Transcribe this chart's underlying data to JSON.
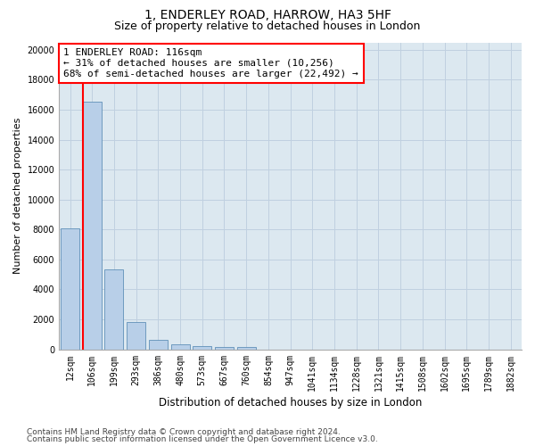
{
  "title1": "1, ENDERLEY ROAD, HARROW, HA3 5HF",
  "title2": "Size of property relative to detached houses in London",
  "xlabel": "Distribution of detached houses by size in London",
  "ylabel": "Number of detached properties",
  "bar_labels": [
    "12sqm",
    "106sqm",
    "199sqm",
    "293sqm",
    "386sqm",
    "480sqm",
    "573sqm",
    "667sqm",
    "760sqm",
    "854sqm",
    "947sqm",
    "1041sqm",
    "1134sqm",
    "1228sqm",
    "1321sqm",
    "1415sqm",
    "1508sqm",
    "1602sqm",
    "1695sqm",
    "1789sqm",
    "1882sqm"
  ],
  "bar_values": [
    8050,
    16550,
    5350,
    1850,
    650,
    320,
    210,
    175,
    130,
    0,
    0,
    0,
    0,
    0,
    0,
    0,
    0,
    0,
    0,
    0,
    0
  ],
  "bar_color": "#b8cfe8",
  "bar_edge_color": "#6090b8",
  "vline_color": "red",
  "annotation_line1": "1 ENDERLEY ROAD: 116sqm",
  "annotation_line2": "← 31% of detached houses are smaller (10,256)",
  "annotation_line3": "68% of semi-detached houses are larger (22,492) →",
  "annotation_box_color": "white",
  "annotation_box_edge_color": "red",
  "ylim": [
    0,
    20500
  ],
  "yticks": [
    0,
    2000,
    4000,
    6000,
    8000,
    10000,
    12000,
    14000,
    16000,
    18000,
    20000
  ],
  "grid_color": "#c0d0e0",
  "bg_color": "#dce8f0",
  "footer1": "Contains HM Land Registry data © Crown copyright and database right 2024.",
  "footer2": "Contains public sector information licensed under the Open Government Licence v3.0.",
  "title1_fontsize": 10,
  "title2_fontsize": 9,
  "tick_fontsize": 7,
  "ylabel_fontsize": 8,
  "xlabel_fontsize": 8.5,
  "annotation_fontsize": 8,
  "footer_fontsize": 6.5
}
